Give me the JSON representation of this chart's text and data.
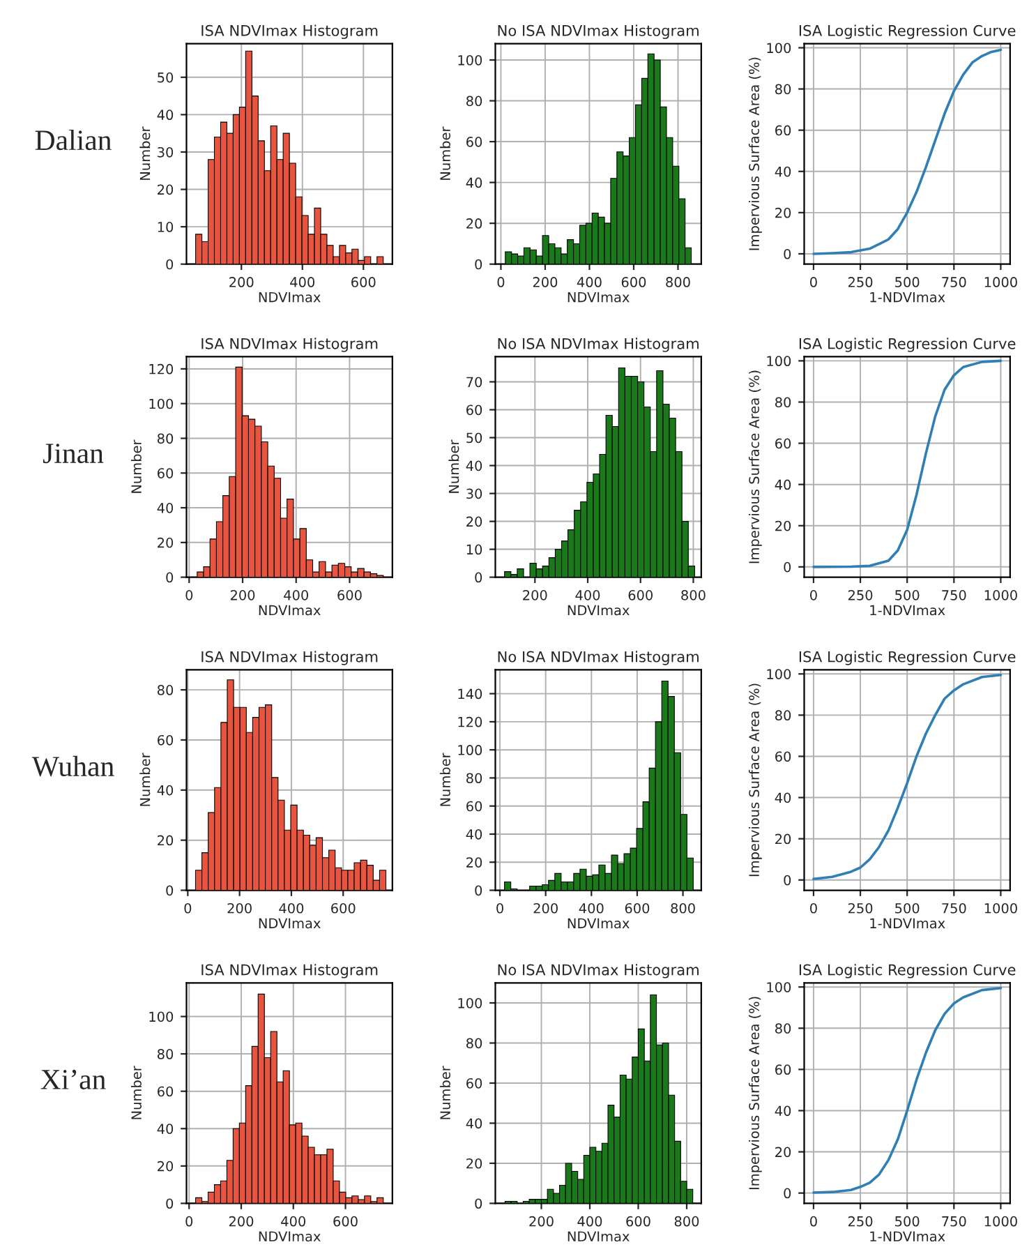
{
  "chart_data": [
    {
      "type": "histogram",
      "title": "ISA NDVImax Histogram",
      "xlabel": "NDVImax",
      "ylabel": "Number",
      "annotations": [
        "Dalian"
      ],
      "color": "#e8553f",
      "bins": [
        50,
        70.5,
        91,
        111.5,
        132,
        152.5,
        173,
        193.5,
        214,
        234.5,
        255,
        275.5,
        296,
        316.5,
        337,
        357.5,
        378,
        398.5,
        419,
        439.5,
        460,
        480.5,
        501,
        521.5,
        542,
        562.5,
        583,
        603.5,
        624,
        644.5,
        665
      ],
      "values": [
        8,
        6,
        28,
        34,
        38,
        35,
        40,
        42,
        57,
        45,
        33,
        25,
        37,
        28,
        35,
        27,
        18,
        13,
        8,
        15,
        8,
        5,
        2,
        5,
        3,
        4,
        1,
        2,
        0,
        2
      ],
      "xlim": [
        20,
        695
      ],
      "xticks": [
        200,
        400,
        600
      ],
      "ylim": [
        0,
        59
      ],
      "yticks": [
        0,
        10,
        20,
        30,
        40,
        50
      ],
      "grid": true
    },
    {
      "type": "histogram",
      "title": "No ISA NDVImax Histogram",
      "xlabel": "NDVImax",
      "ylabel": "Number",
      "color": "#1a7a1a",
      "bins": [
        20,
        48,
        76,
        104,
        132,
        160,
        188,
        216,
        244,
        272,
        300,
        328,
        356,
        384,
        412,
        440,
        468,
        496,
        524,
        552,
        580,
        608,
        636,
        664,
        692,
        720,
        748,
        776,
        804,
        832,
        860
      ],
      "values": [
        6,
        5,
        4,
        8,
        7,
        4,
        14,
        10,
        8,
        5,
        12,
        10,
        19,
        20,
        25,
        23,
        20,
        42,
        55,
        53,
        62,
        78,
        91,
        103,
        100,
        77,
        62,
        48,
        32,
        8
      ],
      "xlim": [
        -25,
        905
      ],
      "xticks": [
        0,
        200,
        400,
        600,
        800
      ],
      "ylim": [
        0,
        108
      ],
      "yticks": [
        0,
        20,
        40,
        60,
        80,
        100
      ],
      "grid": true
    },
    {
      "type": "line",
      "title": "ISA Logistic Regression Curve",
      "xlabel": "1-NDVImax",
      "ylabel": "Impervious Surface Area (%)",
      "series": [
        {
          "color": "#2f7fb5",
          "x": [
            0,
            100,
            200,
            300,
            400,
            450,
            500,
            550,
            600,
            650,
            700,
            750,
            800,
            850,
            900,
            950,
            1000
          ],
          "values": [
            0,
            0.3,
            0.8,
            2.5,
            7,
            12,
            20,
            30,
            42,
            55,
            68,
            79,
            87,
            93,
            96,
            98,
            99
          ]
        }
      ],
      "xlim": [
        -50,
        1050
      ],
      "xticks": [
        0,
        250,
        500,
        750,
        1000
      ],
      "ylim": [
        -5,
        102
      ],
      "yticks": [
        0,
        20,
        40,
        60,
        80,
        100
      ],
      "grid": true
    },
    {
      "type": "histogram",
      "title": "ISA NDVImax Histogram",
      "xlabel": "NDVImax",
      "ylabel": "Number",
      "annotations": [
        "Jinan"
      ],
      "color": "#e8553f",
      "bins": [
        30,
        54,
        78,
        102,
        126,
        150,
        174,
        198,
        222,
        246,
        270,
        294,
        318,
        342,
        366,
        390,
        414,
        438,
        462,
        486,
        510,
        534,
        558,
        582,
        606,
        630,
        654,
        678,
        702,
        726
      ],
      "values": [
        3,
        6,
        22,
        32,
        47,
        58,
        121,
        93,
        91,
        87,
        78,
        64,
        57,
        34,
        45,
        22,
        28,
        10,
        3,
        9,
        3,
        7,
        8,
        6,
        3,
        5,
        3,
        2,
        1
      ],
      "xlim": [
        -10,
        760
      ],
      "xticks": [
        0,
        200,
        400,
        600
      ],
      "ylim": [
        0,
        127
      ],
      "yticks": [
        0,
        20,
        40,
        60,
        80,
        100,
        120
      ],
      "grid": true
    },
    {
      "type": "histogram",
      "title": "No ISA NDVImax Histogram",
      "xlabel": "NDVImax",
      "ylabel": "Number",
      "color": "#1a7a1a",
      "bins": [
        85,
        109,
        133,
        157,
        181,
        205,
        229,
        253,
        277,
        301,
        325,
        349,
        373,
        397,
        421,
        445,
        469,
        493,
        517,
        541,
        565,
        589,
        613,
        637,
        661,
        685,
        709,
        733,
        757,
        781,
        805
      ],
      "values": [
        2,
        1,
        3,
        0,
        5,
        3,
        4,
        7,
        10,
        13,
        17,
        24,
        27,
        34,
        37,
        44,
        58,
        54,
        75,
        72,
        72,
        70,
        61,
        45,
        74,
        62,
        57,
        45,
        20,
        4
      ],
      "xlim": [
        50,
        830
      ],
      "xticks": [
        200,
        400,
        600,
        800
      ],
      "ylim": [
        0,
        79
      ],
      "yticks": [
        0,
        10,
        20,
        30,
        40,
        50,
        60,
        70
      ],
      "grid": true
    },
    {
      "type": "line",
      "title": "ISA Logistic Regression Curve",
      "xlabel": "1-NDVImax",
      "ylabel": "Impervious Surface Area (%)",
      "series": [
        {
          "color": "#2f7fb5",
          "x": [
            0,
            200,
            300,
            400,
            450,
            500,
            550,
            600,
            650,
            700,
            750,
            800,
            900,
            1000
          ],
          "values": [
            0,
            0.1,
            0.5,
            3,
            8,
            18,
            35,
            55,
            73,
            86,
            93,
            97,
            99.5,
            100
          ]
        }
      ],
      "xlim": [
        -50,
        1050
      ],
      "xticks": [
        0,
        250,
        500,
        750,
        1000
      ],
      "ylim": [
        -5,
        102
      ],
      "yticks": [
        0,
        20,
        40,
        60,
        80,
        100
      ],
      "grid": true
    },
    {
      "type": "histogram",
      "title": "ISA NDVImax Histogram",
      "xlabel": "NDVImax",
      "ylabel": "Number",
      "annotations": [
        "Wuhan"
      ],
      "color": "#e8553f",
      "bins": [
        30,
        54.5,
        79,
        103.5,
        128,
        152.5,
        177,
        201.5,
        226,
        250.5,
        275,
        299.5,
        324,
        348.5,
        373,
        397.5,
        422,
        446.5,
        471,
        495.5,
        520,
        544.5,
        569,
        593.5,
        618,
        642.5,
        667,
        691.5,
        716,
        740.5,
        765
      ],
      "values": [
        8,
        15,
        31,
        41,
        67,
        84,
        73,
        73,
        63,
        69,
        73,
        74,
        45,
        36,
        24,
        34,
        24,
        22,
        18,
        21,
        13,
        16,
        9,
        8,
        8,
        11,
        12,
        10,
        4,
        8
      ],
      "xlim": [
        -5,
        790
      ],
      "xticks": [
        0,
        200,
        400,
        600
      ],
      "ylim": [
        0,
        88
      ],
      "yticks": [
        0,
        20,
        40,
        60,
        80
      ],
      "grid": true
    },
    {
      "type": "histogram",
      "title": "No ISA NDVImax Histogram",
      "xlabel": "NDVImax",
      "ylabel": "Number",
      "color": "#1a7a1a",
      "bins": [
        20,
        47.5,
        75,
        102.5,
        130,
        157.5,
        185,
        212.5,
        240,
        267.5,
        295,
        322.5,
        350,
        377.5,
        405,
        432.5,
        460,
        487.5,
        515,
        542.5,
        570,
        597.5,
        625,
        652.5,
        680,
        707.5,
        735,
        762.5,
        790,
        817.5,
        845
      ],
      "values": [
        6,
        1,
        0,
        0,
        3,
        3,
        4,
        7,
        12,
        6,
        6,
        12,
        15,
        10,
        11,
        18,
        12,
        25,
        19,
        26,
        30,
        44,
        63,
        87,
        120,
        149,
        138,
        98,
        54,
        23
      ],
      "xlim": [
        -20,
        880
      ],
      "xticks": [
        0,
        200,
        400,
        600,
        800
      ],
      "ylim": [
        0,
        157
      ],
      "yticks": [
        0,
        20,
        40,
        60,
        80,
        100,
        120,
        140
      ],
      "grid": true
    },
    {
      "type": "line",
      "title": "ISA Logistic Regression Curve",
      "xlabel": "1-NDVImax",
      "ylabel": "Impervious Surface Area (%)",
      "series": [
        {
          "color": "#2f7fb5",
          "x": [
            0,
            100,
            200,
            250,
            300,
            350,
            400,
            450,
            500,
            550,
            600,
            650,
            700,
            750,
            800,
            900,
            1000
          ],
          "values": [
            0.5,
            1.5,
            4,
            6,
            10,
            16,
            24,
            35,
            47,
            60,
            71,
            80,
            88,
            92,
            95,
            98.5,
            99.5
          ]
        }
      ],
      "xlim": [
        -50,
        1050
      ],
      "xticks": [
        0,
        250,
        500,
        750,
        1000
      ],
      "ylim": [
        -5,
        102
      ],
      "yticks": [
        0,
        20,
        40,
        60,
        80,
        100
      ],
      "grid": true
    },
    {
      "type": "histogram",
      "title": "ISA NDVImax Histogram",
      "xlabel": "NDVImax",
      "ylabel": "Number",
      "annotations": [
        "Xi’an"
      ],
      "color": "#e8553f",
      "bins": [
        25,
        49,
        73,
        97,
        121,
        145,
        169,
        193,
        217,
        241,
        265,
        289,
        313,
        337,
        361,
        385,
        409,
        433,
        457,
        481,
        505,
        529,
        553,
        577,
        601,
        625,
        649,
        673,
        697,
        721,
        745
      ],
      "values": [
        3,
        1,
        6,
        10,
        12,
        23,
        40,
        43,
        63,
        84,
        112,
        78,
        92,
        65,
        71,
        42,
        43,
        36,
        30,
        26,
        26,
        29,
        12,
        6,
        3,
        4,
        2,
        4,
        1,
        3
      ],
      "xlim": [
        -10,
        780
      ],
      "xticks": [
        0,
        200,
        400,
        600
      ],
      "ylim": [
        0,
        118
      ],
      "yticks": [
        0,
        20,
        40,
        60,
        80,
        100
      ],
      "grid": true
    },
    {
      "type": "histogram",
      "title": "No ISA NDVImax Histogram",
      "xlabel": "NDVImax",
      "ylabel": "Number",
      "color": "#1a7a1a",
      "bins": [
        50,
        75,
        100,
        125,
        150,
        175,
        200,
        225,
        250,
        275,
        300,
        325,
        350,
        375,
        400,
        425,
        450,
        475,
        500,
        525,
        550,
        575,
        600,
        625,
        650,
        675,
        700,
        725,
        750,
        775,
        800,
        825
      ],
      "values": [
        1,
        1,
        0,
        1,
        2,
        2,
        2,
        7,
        5,
        9,
        20,
        16,
        12,
        24,
        28,
        26,
        30,
        49,
        43,
        64,
        62,
        73,
        87,
        71,
        104,
        79,
        80,
        54,
        31,
        11,
        7
      ],
      "xlim": [
        10,
        860
      ],
      "xticks": [
        200,
        400,
        600,
        800
      ],
      "ylim": [
        0,
        110
      ],
      "yticks": [
        0,
        20,
        40,
        60,
        80,
        100
      ],
      "grid": true
    },
    {
      "type": "line",
      "title": "ISA Logistic Regression Curve",
      "xlabel": "1-NDVImax",
      "ylabel": "Impervious Surface Area (%)",
      "series": [
        {
          "color": "#2f7fb5",
          "x": [
            0,
            100,
            200,
            250,
            300,
            350,
            400,
            450,
            500,
            550,
            600,
            650,
            700,
            750,
            800,
            900,
            1000
          ],
          "values": [
            0.2,
            0.5,
            1.5,
            3,
            5,
            9,
            16,
            26,
            40,
            55,
            68,
            79,
            87,
            92,
            95,
            98.5,
            99.5
          ]
        }
      ],
      "xlim": [
        -50,
        1050
      ],
      "xticks": [
        0,
        250,
        500,
        750,
        1000
      ],
      "ylim": [
        -5,
        102
      ],
      "yticks": [
        0,
        20,
        40,
        60,
        80,
        100
      ],
      "grid": true
    }
  ]
}
